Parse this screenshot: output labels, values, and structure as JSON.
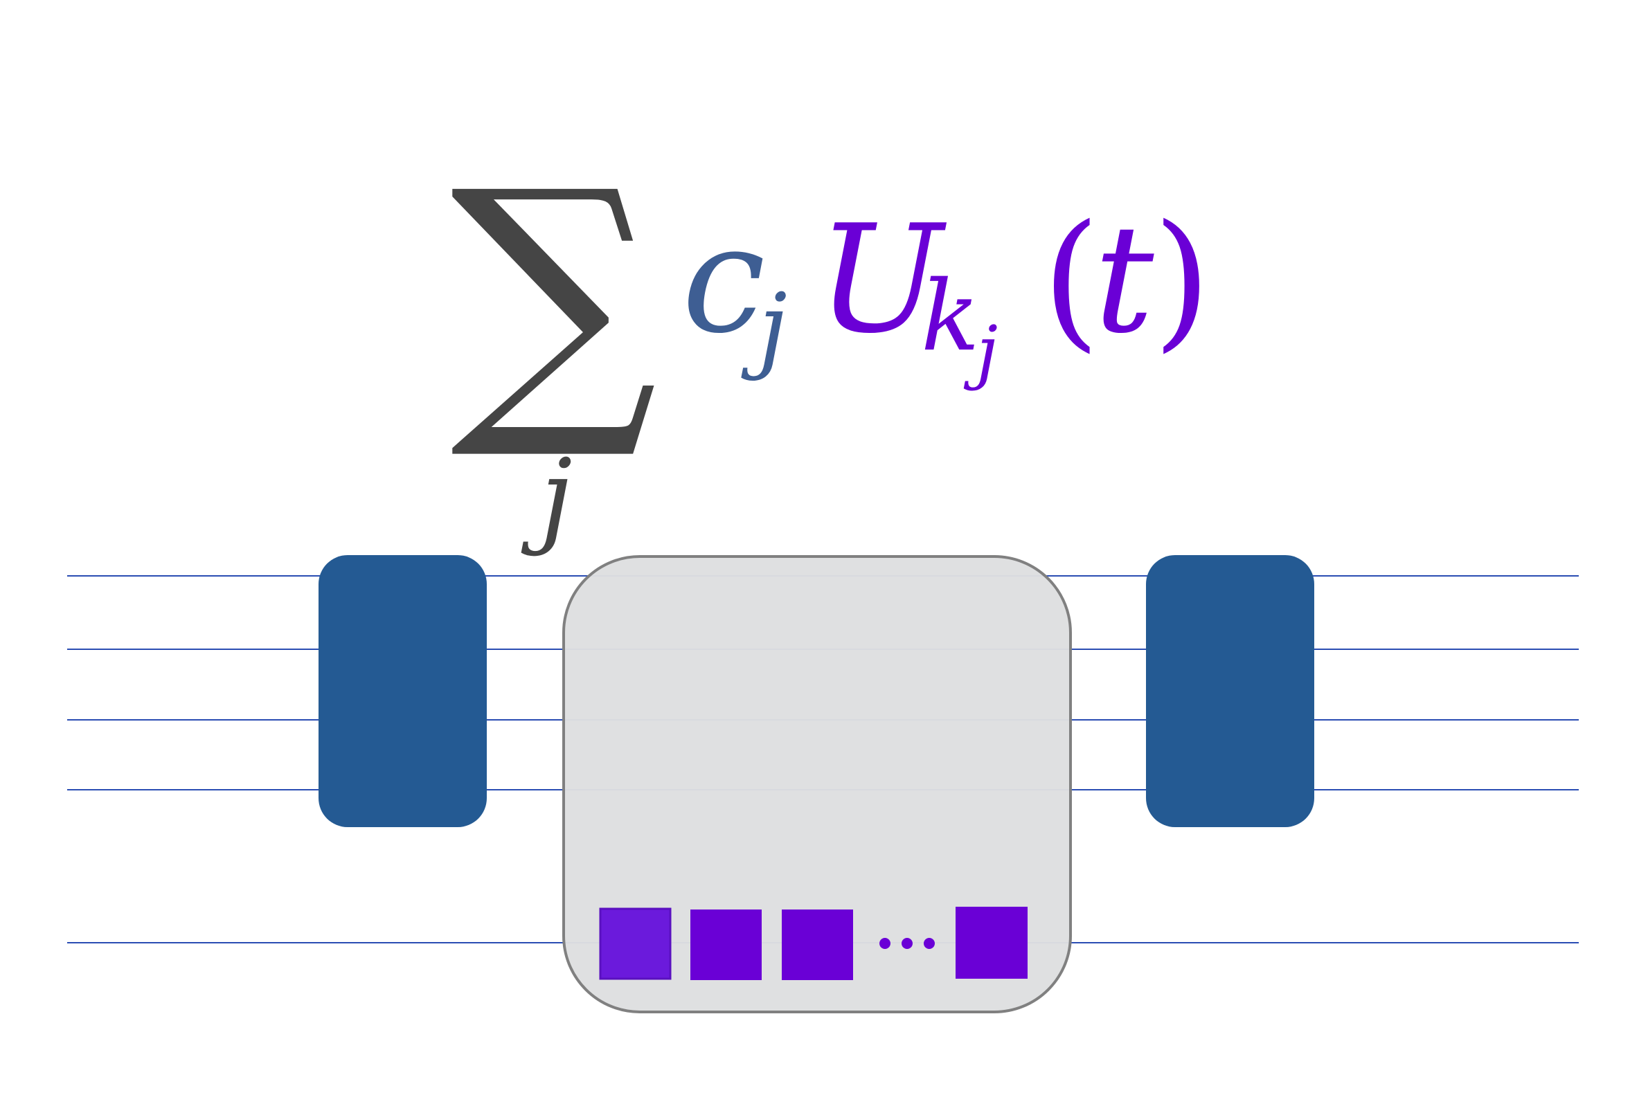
{
  "formula": {
    "sum_symbol": "∑",
    "sum_index": "j",
    "coefficient": "c",
    "coefficient_sub": "j",
    "operator": "U",
    "operator_sub": "k",
    "operator_subsub": "j",
    "open_paren": "(",
    "argument": "t",
    "close_paren": ")"
  },
  "circuit": {
    "wire_count": 5,
    "inner_gate_count": 4,
    "ellipsis_dot_count": 3
  },
  "colors": {
    "sum_symbol": "#454545",
    "coefficient": "#3e5e93",
    "operator": "#6a00d6",
    "wire": "#2a4db3",
    "outer_gate": "#245a93",
    "container_fill": "#dedfe0",
    "container_stroke": "#808080",
    "inner_gate": "#6a00d6",
    "inner_gate_first": "#6b1adc"
  }
}
